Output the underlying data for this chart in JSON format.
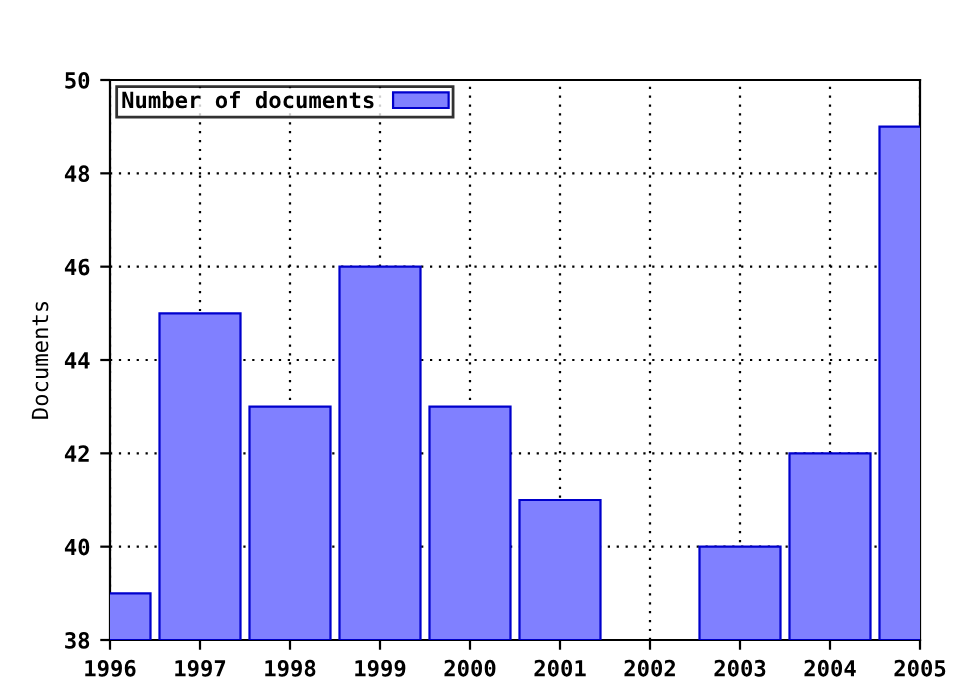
{
  "chart_data": {
    "type": "bar",
    "ylabel": "Documents",
    "x": [
      1996,
      1997,
      1998,
      1999,
      2000,
      2001,
      2002,
      2003,
      2004,
      2005
    ],
    "series": [
      {
        "name": "Number of documents",
        "color": "#8080ff",
        "values": [
          39,
          45,
          43,
          46,
          43,
          41,
          null,
          40,
          42,
          49
        ]
      }
    ],
    "xlim": [
      1996,
      2005
    ],
    "xticks": [
      1996,
      1997,
      1998,
      1999,
      2000,
      2001,
      2002,
      2003,
      2004,
      2005
    ],
    "ylim": [
      38,
      50
    ],
    "yticks": [
      38,
      40,
      42,
      44,
      46,
      48,
      50
    ],
    "grid": true,
    "legend": "top left"
  }
}
